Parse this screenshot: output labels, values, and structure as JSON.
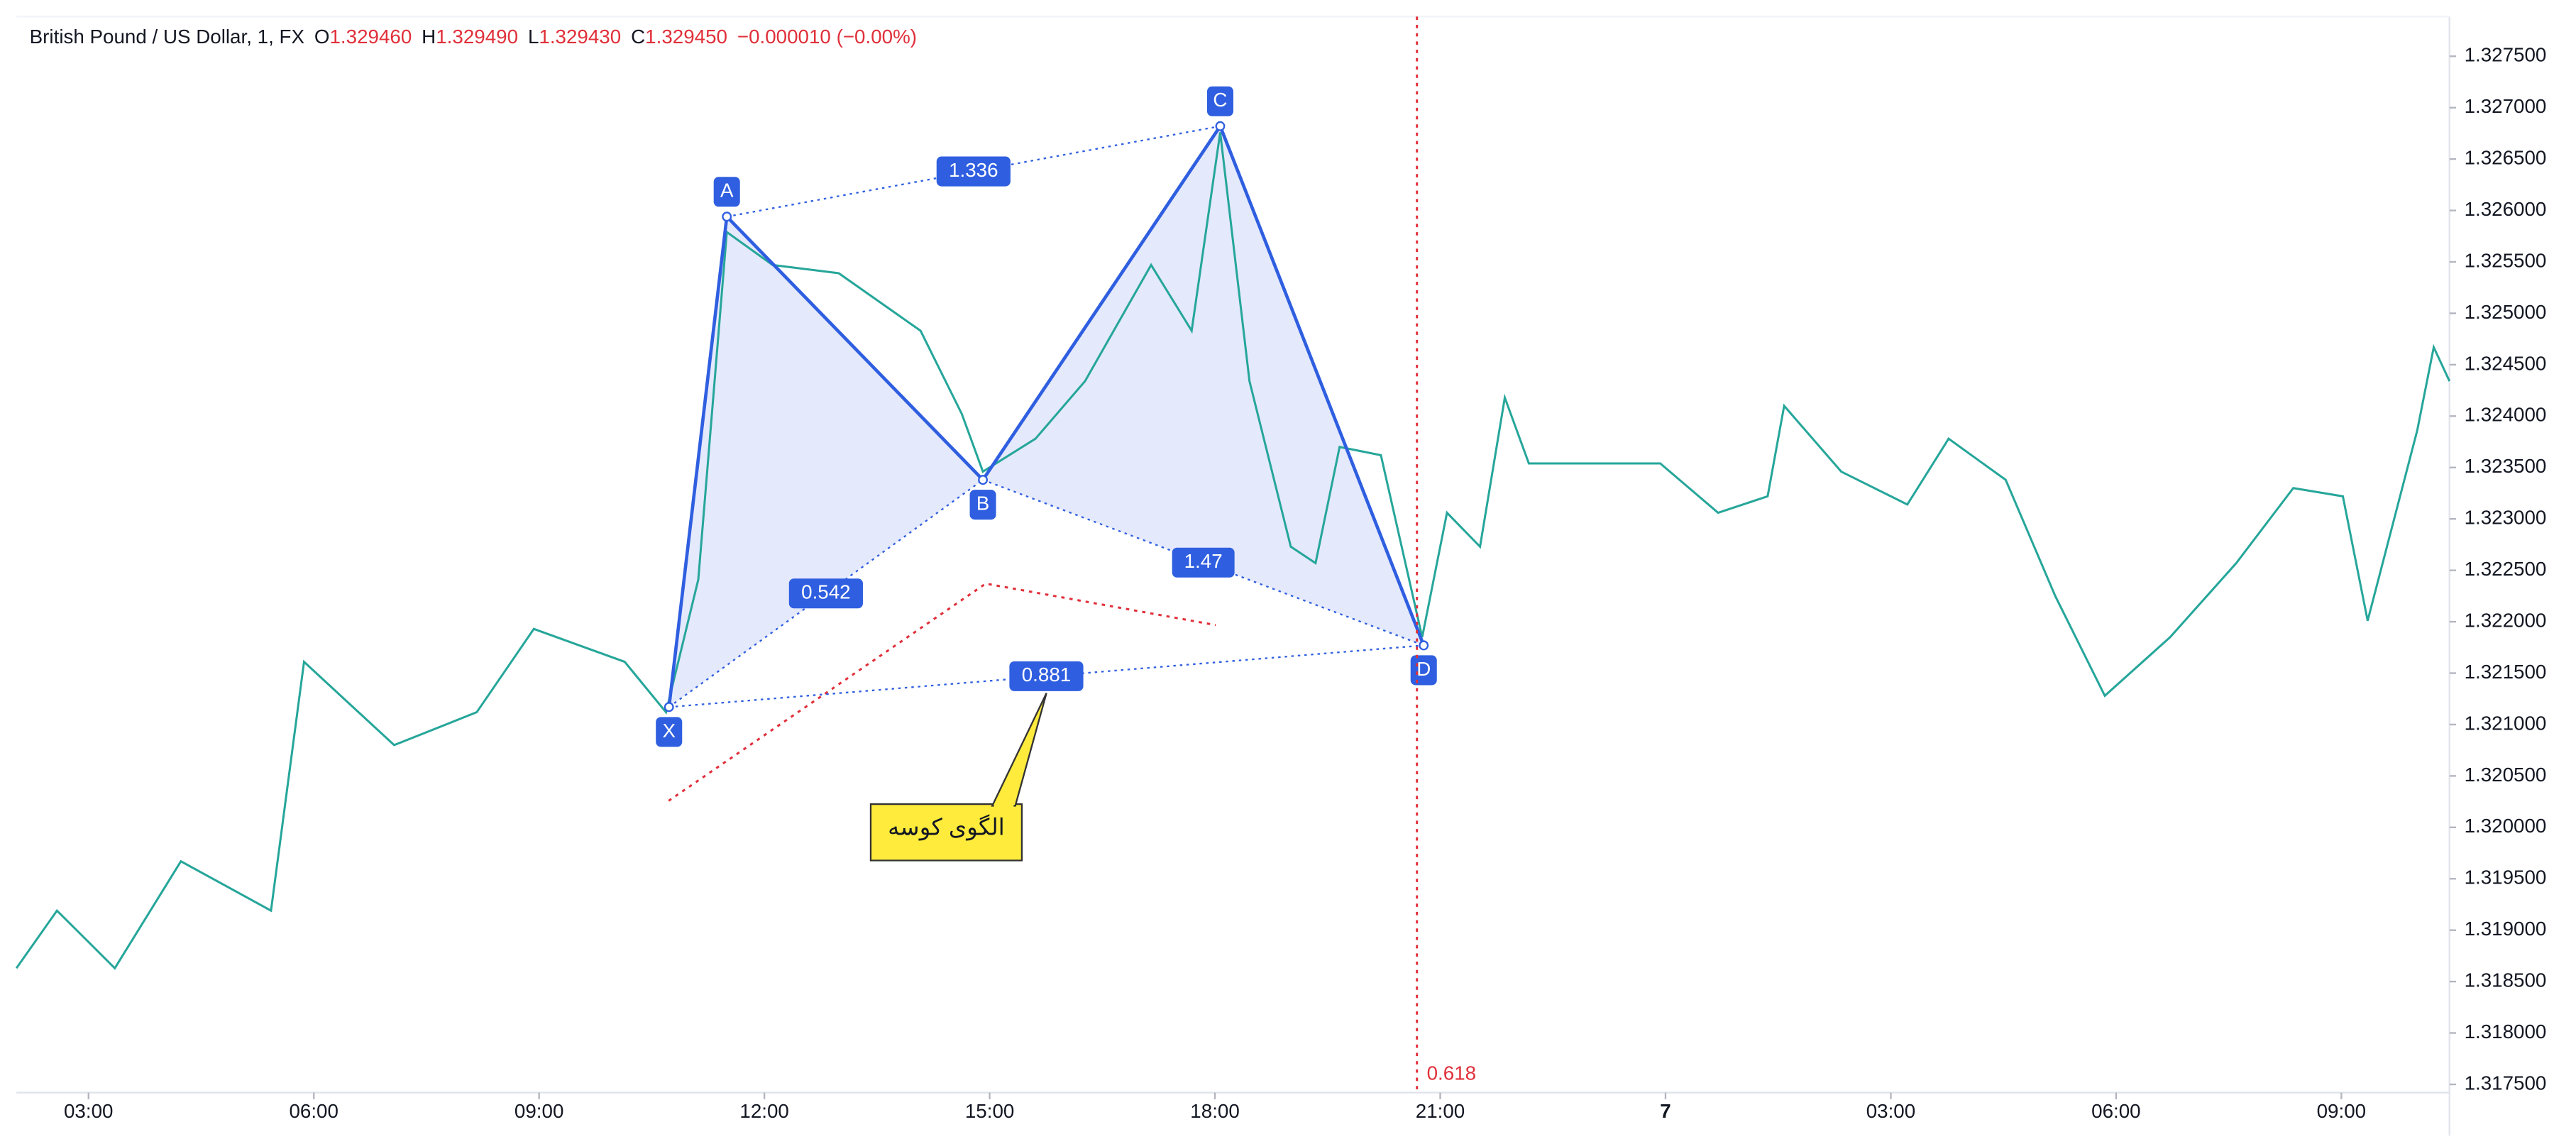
{
  "chart_data": {
    "type": "line",
    "header": {
      "symbol": "British Pound / US Dollar, 1, FX",
      "ohlc": [
        {
          "key": "O",
          "value": "1.329460"
        },
        {
          "key": "H",
          "value": "1.329490"
        },
        {
          "key": "L",
          "value": "1.329430"
        },
        {
          "key": "C",
          "value": "1.329450"
        }
      ],
      "change": "−0.000010 (−0.00%)"
    },
    "x": [
      2.04,
      2.58,
      3.35,
      4.23,
      5.43,
      5.87,
      7.07,
      8.17,
      8.93,
      10.14,
      10.69,
      11.12,
      11.5,
      12.11,
      12.99,
      14.08,
      14.63,
      14.91,
      15.61,
      16.27,
      17.15,
      17.69,
      18.07,
      18.46,
      19.01,
      19.34,
      19.66,
      20.21,
      20.76,
      21.09,
      21.53,
      21.86,
      22.18,
      23.06,
      23.93,
      24.7,
      25.36,
      25.58,
      26.34,
      27.22,
      27.77,
      28.53,
      29.19,
      29.85,
      30.72,
      31.6,
      32.36,
      33.02,
      33.35,
      34.01,
      34.23,
      34.44
    ],
    "values": [
      1.31863,
      1.31919,
      1.31863,
      1.31967,
      1.31919,
      1.32161,
      1.3208,
      1.32112,
      1.32193,
      1.32161,
      1.32112,
      1.32241,
      1.32579,
      1.32547,
      1.32539,
      1.32483,
      1.32402,
      1.32346,
      1.32378,
      1.32434,
      1.32547,
      1.32483,
      1.32676,
      1.32434,
      1.32273,
      1.32257,
      1.3237,
      1.32362,
      1.32185,
      1.32306,
      1.32273,
      1.32418,
      1.32354,
      1.32354,
      1.32354,
      1.32306,
      1.32322,
      1.3241,
      1.32346,
      1.32314,
      1.32378,
      1.32338,
      1.32225,
      1.32128,
      1.32185,
      1.32257,
      1.3233,
      1.32322,
      1.32201,
      1.32386,
      1.32467,
      1.32434
    ],
    "color": "#26a69a",
    "xlim": [
      2.04,
      34.44
    ],
    "xticks": [
      {
        "value": 3,
        "label": "03:00"
      },
      {
        "value": 6,
        "label": "06:00"
      },
      {
        "value": 9,
        "label": "09:00"
      },
      {
        "value": 12,
        "label": "12:00"
      },
      {
        "value": 15,
        "label": "15:00"
      },
      {
        "value": 18,
        "label": "18:00"
      },
      {
        "value": 21,
        "label": "21:00"
      },
      {
        "value": 24,
        "label": "7"
      },
      {
        "value": 27,
        "label": "03:00"
      },
      {
        "value": 30,
        "label": "06:00"
      },
      {
        "value": 33,
        "label": "09:00"
      }
    ],
    "ylim": [
      1.31742,
      1.327886
    ],
    "yticks": [
      {
        "value": 1.3175,
        "label": "1.317500"
      },
      {
        "value": 1.318,
        "label": "1.318000"
      },
      {
        "value": 1.3185,
        "label": "1.318500"
      },
      {
        "value": 1.319,
        "label": "1.319000"
      },
      {
        "value": 1.3195,
        "label": "1.319500"
      },
      {
        "value": 1.32,
        "label": "1.320000"
      },
      {
        "value": 1.3205,
        "label": "1.320500"
      },
      {
        "value": 1.321,
        "label": "1.321000"
      },
      {
        "value": 1.3215,
        "label": "1.321500"
      },
      {
        "value": 1.322,
        "label": "1.322000"
      },
      {
        "value": 1.3225,
        "label": "1.322500"
      },
      {
        "value": 1.323,
        "label": "1.323000"
      },
      {
        "value": 1.3235,
        "label": "1.323500"
      },
      {
        "value": 1.324,
        "label": "1.324000"
      },
      {
        "value": 1.3245,
        "label": "1.324500"
      },
      {
        "value": 1.325,
        "label": "1.325000"
      },
      {
        "value": 1.3255,
        "label": "1.325500"
      },
      {
        "value": 1.326,
        "label": "1.326000"
      },
      {
        "value": 1.3265,
        "label": "1.326500"
      },
      {
        "value": 1.327,
        "label": "1.327000"
      },
      {
        "value": 1.3275,
        "label": "1.327500"
      }
    ],
    "grid": false,
    "pattern": {
      "labels": [
        "X",
        "A",
        "B",
        "C",
        "D"
      ],
      "x": [
        10.73,
        11.5,
        14.91,
        18.07,
        20.78
      ],
      "y": [
        1.32117,
        1.32594,
        1.32338,
        1.32682,
        1.32177
      ],
      "ratios": [
        "1.336",
        "0.542",
        "1.47",
        "0.881"
      ],
      "color": "#2f5fe0",
      "fill": "#dde4fb"
    },
    "vline": {
      "x": 20.69,
      "label": "0.618",
      "color": "#e0303a"
    },
    "annotation": "الگوی کوسه"
  }
}
